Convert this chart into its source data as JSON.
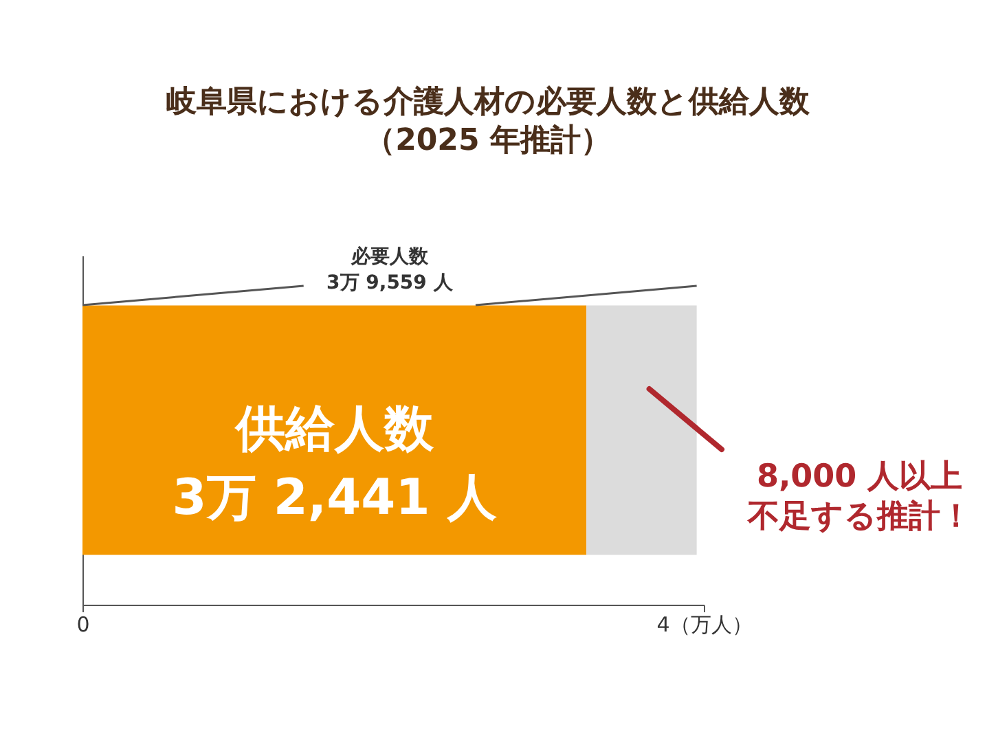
{
  "chart_data": {
    "type": "bar",
    "orientation": "horizontal",
    "stacked": true,
    "title": "岐阜県における介護人材の必要人数と供給人数",
    "subtitle": "（2025 年推計）",
    "categories": [
      null
    ],
    "series": [
      {
        "color": "#f39800",
        "values": [
          3.2441
        ],
        "value_labels": [
          "供給人数\n3万 2,441 人"
        ]
      },
      {
        "color": "#dcdcdc",
        "values": [
          0.71
        ]
      }
    ],
    "xlim": [
      0,
      4
    ],
    "xticks": [
      0,
      {
        "value": 4,
        "label": "4（万人）"
      }
    ],
    "grid": false,
    "annotations": [
      "必要人数",
      "3万 9,559 人",
      "8,000 人以上",
      "不足する推計！"
    ]
  }
}
